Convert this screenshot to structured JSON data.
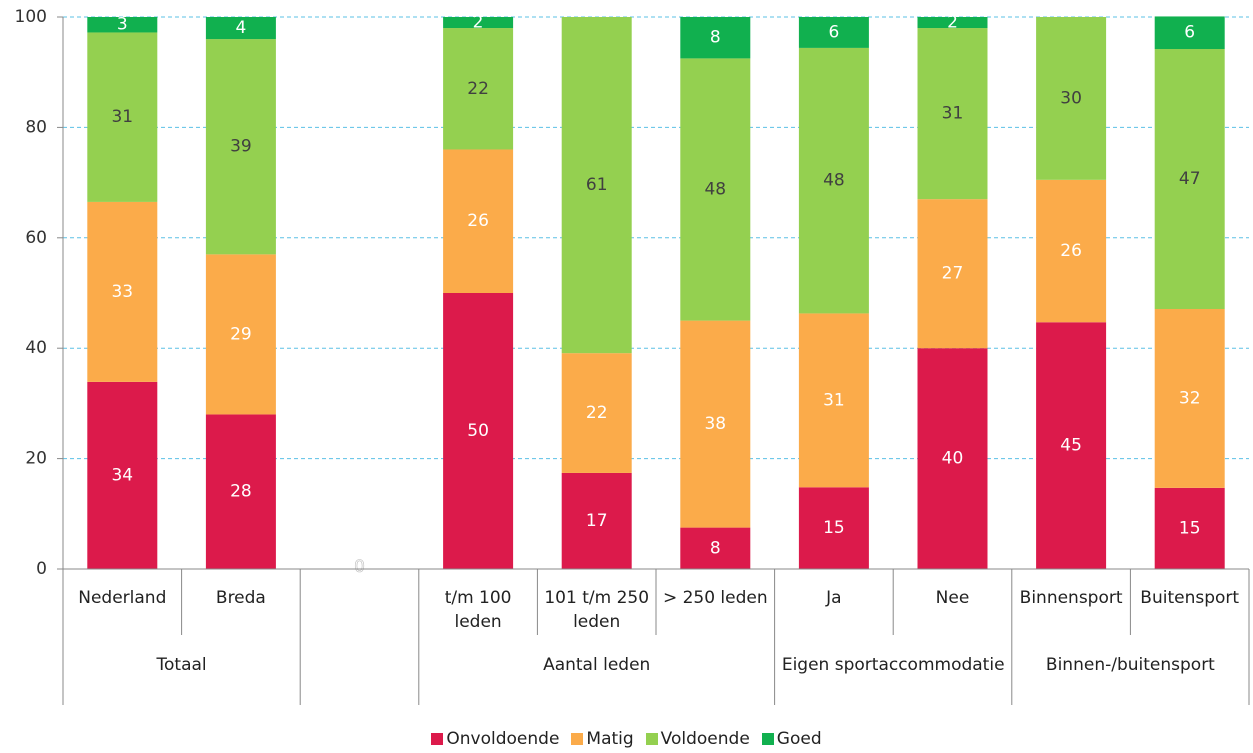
{
  "chart_data": {
    "type": "stacked_bar",
    "categories": [
      "Nederland",
      "Breda",
      null,
      "t/m 100 leden",
      "101 t/m 250 leden",
      "> 250 leden",
      "Ja",
      "Nee",
      "Binnensport",
      "Buitensport"
    ],
    "groups": [
      {
        "name": "Totaal",
        "count": 2
      },
      {
        "name": null,
        "count": 1
      },
      {
        "name": "Aantal leden",
        "count": 3
      },
      {
        "name": "Eigen sportaccommodatie",
        "count": 2
      },
      {
        "name": "Binnen-/buitensport",
        "count": 2
      }
    ],
    "series": [
      {
        "name": "Onvoldoende",
        "color": "#dc1a4b",
        "label_color": "#ffffff",
        "values": [
          33.9,
          28,
          0,
          50,
          17.4,
          7.5,
          14.8,
          40,
          44.7,
          14.7
        ],
        "value_labels": [
          "34",
          "28",
          "0",
          "50",
          "17",
          "8",
          "15",
          "40",
          "45",
          "15"
        ]
      },
      {
        "name": "Matig",
        "color": "#fbab4a",
        "label_color": "#ffffff",
        "values": [
          32.6,
          29,
          null,
          26,
          21.7,
          37.5,
          31.5,
          27,
          25.8,
          32.4
        ],
        "value_labels": [
          "33",
          "29",
          null,
          "26",
          "22",
          "38",
          "31",
          "27",
          "26",
          "32"
        ]
      },
      {
        "name": "Voldoende",
        "color": "#94d050",
        "label_color": "#404040",
        "values": [
          30.7,
          39,
          null,
          22,
          60.9,
          47.5,
          48.1,
          31,
          29.5,
          47.1
        ],
        "value_labels": [
          "31",
          "39",
          null,
          "22",
          "61",
          "48",
          "48",
          "31",
          "30",
          "47"
        ]
      },
      {
        "name": "Goed",
        "color": "#11b04f",
        "label_color": "#ffffff",
        "values": [
          2.8,
          4,
          null,
          2,
          null,
          7.5,
          5.6,
          2,
          null,
          5.9
        ],
        "value_labels": [
          "3",
          "4",
          null,
          "2",
          null,
          "8",
          "6",
          "2",
          null,
          "6"
        ]
      }
    ],
    "ylim": [
      0,
      100
    ],
    "yticks": [
      0,
      20,
      40,
      60,
      80,
      100
    ],
    "grid": true,
    "legend": "bottom"
  }
}
